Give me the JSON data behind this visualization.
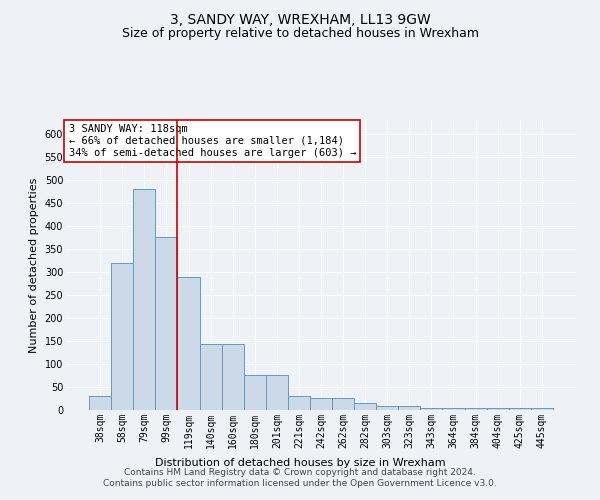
{
  "title": "3, SANDY WAY, WREXHAM, LL13 9GW",
  "subtitle": "Size of property relative to detached houses in Wrexham",
  "xlabel": "Distribution of detached houses by size in Wrexham",
  "ylabel": "Number of detached properties",
  "categories": [
    "38sqm",
    "58sqm",
    "79sqm",
    "99sqm",
    "119sqm",
    "140sqm",
    "160sqm",
    "180sqm",
    "201sqm",
    "221sqm",
    "242sqm",
    "262sqm",
    "282sqm",
    "303sqm",
    "323sqm",
    "343sqm",
    "364sqm",
    "384sqm",
    "404sqm",
    "425sqm",
    "445sqm"
  ],
  "values": [
    30,
    320,
    480,
    375,
    290,
    143,
    143,
    75,
    75,
    30,
    27,
    27,
    15,
    8,
    8,
    5,
    5,
    5,
    5,
    5,
    5
  ],
  "bar_color": "#ccd9e8",
  "bar_edge_color": "#6699bb",
  "vline_x_index": 4,
  "vline_color": "#cc0000",
  "annotation_text": "3 SANDY WAY: 118sqm\n← 66% of detached houses are smaller (1,184)\n34% of semi-detached houses are larger (603) →",
  "annotation_box_color": "#ffffff",
  "annotation_box_edge": "#cc0000",
  "ylim": [
    0,
    630
  ],
  "yticks": [
    0,
    50,
    100,
    150,
    200,
    250,
    300,
    350,
    400,
    450,
    500,
    550,
    600
  ],
  "footer_line1": "Contains HM Land Registry data © Crown copyright and database right 2024.",
  "footer_line2": "Contains public sector information licensed under the Open Government Licence v3.0.",
  "title_fontsize": 10,
  "subtitle_fontsize": 9,
  "axis_label_fontsize": 8,
  "tick_fontsize": 7,
  "annotation_fontsize": 7.5,
  "footer_fontsize": 6.5,
  "background_color": "#eef2f7",
  "plot_background_color": "#eef2f7"
}
